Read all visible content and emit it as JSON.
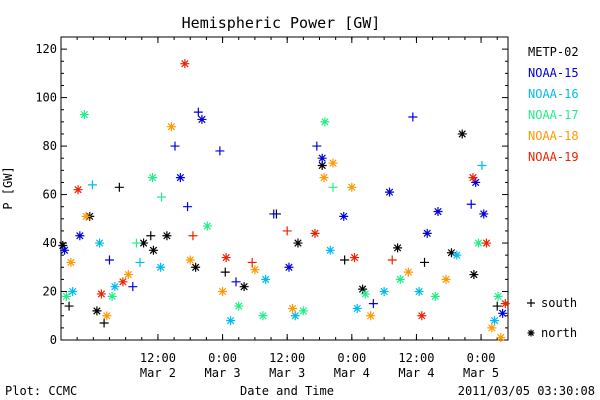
{
  "chart_data": {
    "type": "scatter",
    "title": "Hemispheric Power [GW]",
    "xlabel": "Date and Time",
    "ylabel": "P [GW]",
    "ylim": [
      0,
      125
    ],
    "yticks": [
      0,
      20,
      40,
      60,
      80,
      100,
      120
    ],
    "xlim": [
      "2011-03-01T18:00",
      "2011-03-05T05:00"
    ],
    "xticks": [
      {
        "time": "2011-03-02T12:00",
        "top": "12:00",
        "bottom": "Mar 2"
      },
      {
        "time": "2011-03-03T00:00",
        "top": "0:00",
        "bottom": "Mar 3"
      },
      {
        "time": "2011-03-03T12:00",
        "top": "12:00",
        "bottom": "Mar 3"
      },
      {
        "time": "2011-03-04T00:00",
        "top": "0:00",
        "bottom": "Mar 4"
      },
      {
        "time": "2011-03-04T12:00",
        "top": "12:00",
        "bottom": "Mar 4"
      },
      {
        "time": "2011-03-05T00:00",
        "top": "0:00",
        "bottom": "Mar 5"
      }
    ],
    "legend_position": "right",
    "marker_legend": [
      {
        "marker": "plus",
        "label": "south"
      },
      {
        "marker": "asterisk",
        "label": "north"
      }
    ],
    "series": [
      {
        "name": "METP-02",
        "color": "#000000",
        "points": [
          {
            "x": "2011-03-01T18:20",
            "y": 39,
            "m": "a"
          },
          {
            "x": "2011-03-01T19:30",
            "y": 14,
            "m": "p"
          },
          {
            "x": "2011-03-01T23:20",
            "y": 51,
            "m": "a"
          },
          {
            "x": "2011-03-02T00:40",
            "y": 12,
            "m": "a"
          },
          {
            "x": "2011-03-02T02:00",
            "y": 7,
            "m": "p"
          },
          {
            "x": "2011-03-02T04:50",
            "y": 63,
            "m": "p"
          },
          {
            "x": "2011-03-02T09:20",
            "y": 40,
            "m": "a"
          },
          {
            "x": "2011-03-02T10:40",
            "y": 43,
            "m": "p"
          },
          {
            "x": "2011-03-02T11:10",
            "y": 37,
            "m": "a"
          },
          {
            "x": "2011-03-02T13:40",
            "y": 43,
            "m": "a"
          },
          {
            "x": "2011-03-02T19:00",
            "y": 30,
            "m": "a"
          },
          {
            "x": "2011-03-03T00:30",
            "y": 28,
            "m": "p"
          },
          {
            "x": "2011-03-03T04:00",
            "y": 22,
            "m": "a"
          },
          {
            "x": "2011-03-03T10:00",
            "y": 52,
            "m": "p"
          },
          {
            "x": "2011-03-03T14:00",
            "y": 40,
            "m": "a"
          },
          {
            "x": "2011-03-03T18:30",
            "y": 72,
            "m": "a"
          },
          {
            "x": "2011-03-03T22:40",
            "y": 33,
            "m": "p"
          },
          {
            "x": "2011-03-04T02:00",
            "y": 21,
            "m": "a"
          },
          {
            "x": "2011-03-04T08:30",
            "y": 38,
            "m": "a"
          },
          {
            "x": "2011-03-04T13:30",
            "y": 32,
            "m": "p"
          },
          {
            "x": "2011-03-04T18:30",
            "y": 36,
            "m": "a"
          },
          {
            "x": "2011-03-04T20:30",
            "y": 85,
            "m": "a"
          },
          {
            "x": "2011-03-04T22:40",
            "y": 27,
            "m": "a"
          },
          {
            "x": "2011-03-05T03:00",
            "y": 14,
            "m": "p"
          }
        ]
      },
      {
        "name": "NOAA-15",
        "color": "#0000dd",
        "points": [
          {
            "x": "2011-03-01T18:40",
            "y": 37,
            "m": "a"
          },
          {
            "x": "2011-03-01T21:30",
            "y": 43,
            "m": "a"
          },
          {
            "x": "2011-03-02T03:00",
            "y": 33,
            "m": "p"
          },
          {
            "x": "2011-03-02T07:20",
            "y": 22,
            "m": "p"
          },
          {
            "x": "2011-03-02T15:10",
            "y": 80,
            "m": "p"
          },
          {
            "x": "2011-03-02T16:10",
            "y": 67,
            "m": "a"
          },
          {
            "x": "2011-03-02T17:30",
            "y": 55,
            "m": "p"
          },
          {
            "x": "2011-03-02T19:30",
            "y": 94,
            "m": "p"
          },
          {
            "x": "2011-03-02T20:10",
            "y": 91,
            "m": "a"
          },
          {
            "x": "2011-03-02T23:30",
            "y": 78,
            "m": "p"
          },
          {
            "x": "2011-03-03T02:30",
            "y": 24,
            "m": "p"
          },
          {
            "x": "2011-03-03T09:30",
            "y": 52,
            "m": "p"
          },
          {
            "x": "2011-03-03T12:20",
            "y": 30,
            "m": "a"
          },
          {
            "x": "2011-03-03T17:30",
            "y": 80,
            "m": "p"
          },
          {
            "x": "2011-03-03T18:30",
            "y": 75,
            "m": "a"
          },
          {
            "x": "2011-03-03T22:30",
            "y": 51,
            "m": "a"
          },
          {
            "x": "2011-03-04T04:00",
            "y": 15,
            "m": "p"
          },
          {
            "x": "2011-03-04T07:00",
            "y": 61,
            "m": "a"
          },
          {
            "x": "2011-03-04T11:20",
            "y": 92,
            "m": "p"
          },
          {
            "x": "2011-03-04T14:00",
            "y": 44,
            "m": "a"
          },
          {
            "x": "2011-03-04T16:00",
            "y": 53,
            "m": "a"
          },
          {
            "x": "2011-03-04T22:10",
            "y": 56,
            "m": "p"
          },
          {
            "x": "2011-03-04T23:00",
            "y": 65,
            "m": "a"
          },
          {
            "x": "2011-03-05T00:30",
            "y": 52,
            "m": "a"
          },
          {
            "x": "2011-03-05T04:00",
            "y": 11,
            "m": "a"
          }
        ]
      },
      {
        "name": "NOAA-16",
        "color": "#00bbee",
        "points": [
          {
            "x": "2011-03-01T20:10",
            "y": 20,
            "m": "a"
          },
          {
            "x": "2011-03-01T23:50",
            "y": 64,
            "m": "p"
          },
          {
            "x": "2011-03-02T01:10",
            "y": 40,
            "m": "a"
          },
          {
            "x": "2011-03-02T04:00",
            "y": 22,
            "m": "a"
          },
          {
            "x": "2011-03-02T08:40",
            "y": 32,
            "m": "p"
          },
          {
            "x": "2011-03-02T12:30",
            "y": 30,
            "m": "a"
          },
          {
            "x": "2011-03-03T01:30",
            "y": 8,
            "m": "a"
          },
          {
            "x": "2011-03-03T08:00",
            "y": 25,
            "m": "a"
          },
          {
            "x": "2011-03-03T13:30",
            "y": 10,
            "m": "a"
          },
          {
            "x": "2011-03-03T20:00",
            "y": 37,
            "m": "a"
          },
          {
            "x": "2011-03-04T01:00",
            "y": 13,
            "m": "a"
          },
          {
            "x": "2011-03-04T06:00",
            "y": 20,
            "m": "a"
          },
          {
            "x": "2011-03-04T12:30",
            "y": 20,
            "m": "a"
          },
          {
            "x": "2011-03-04T19:30",
            "y": 35,
            "m": "a"
          },
          {
            "x": "2011-03-05T00:10",
            "y": 72,
            "m": "p"
          },
          {
            "x": "2011-03-05T02:30",
            "y": 8,
            "m": "a"
          }
        ]
      },
      {
        "name": "NOAA-17",
        "color": "#22ee88",
        "points": [
          {
            "x": "2011-03-01T19:00",
            "y": 18,
            "m": "a"
          },
          {
            "x": "2011-03-01T22:20",
            "y": 93,
            "m": "a"
          },
          {
            "x": "2011-03-02T03:30",
            "y": 18,
            "m": "a"
          },
          {
            "x": "2011-03-02T08:00",
            "y": 40,
            "m": "p"
          },
          {
            "x": "2011-03-02T11:00",
            "y": 67,
            "m": "a"
          },
          {
            "x": "2011-03-02T12:40",
            "y": 59,
            "m": "p"
          },
          {
            "x": "2011-03-02T21:10",
            "y": 47,
            "m": "a"
          },
          {
            "x": "2011-03-03T03:00",
            "y": 14,
            "m": "a"
          },
          {
            "x": "2011-03-03T07:30",
            "y": 10,
            "m": "a"
          },
          {
            "x": "2011-03-03T15:00",
            "y": 12,
            "m": "a"
          },
          {
            "x": "2011-03-03T19:00",
            "y": 90,
            "m": "a"
          },
          {
            "x": "2011-03-03T20:30",
            "y": 63,
            "m": "p"
          },
          {
            "x": "2011-03-04T02:30",
            "y": 19,
            "m": "a"
          },
          {
            "x": "2011-03-04T09:00",
            "y": 25,
            "m": "a"
          },
          {
            "x": "2011-03-04T15:30",
            "y": 18,
            "m": "a"
          },
          {
            "x": "2011-03-04T23:30",
            "y": 40,
            "m": "a"
          },
          {
            "x": "2011-03-05T03:10",
            "y": 18,
            "m": "a"
          }
        ]
      },
      {
        "name": "NOAA-18",
        "color": "#ff9900",
        "points": [
          {
            "x": "2011-03-01T19:50",
            "y": 32,
            "m": "a"
          },
          {
            "x": "2011-03-01T22:40",
            "y": 51,
            "m": "a"
          },
          {
            "x": "2011-03-02T02:30",
            "y": 10,
            "m": "a"
          },
          {
            "x": "2011-03-02T06:30",
            "y": 27,
            "m": "a"
          },
          {
            "x": "2011-03-02T14:30",
            "y": 88,
            "m": "a"
          },
          {
            "x": "2011-03-02T18:00",
            "y": 33,
            "m": "a"
          },
          {
            "x": "2011-03-03T00:00",
            "y": 20,
            "m": "a"
          },
          {
            "x": "2011-03-03T06:00",
            "y": 29,
            "m": "a"
          },
          {
            "x": "2011-03-03T13:00",
            "y": 13,
            "m": "a"
          },
          {
            "x": "2011-03-03T18:50",
            "y": 67,
            "m": "a"
          },
          {
            "x": "2011-03-03T20:30",
            "y": 73,
            "m": "a"
          },
          {
            "x": "2011-03-04T00:00",
            "y": 63,
            "m": "a"
          },
          {
            "x": "2011-03-04T03:30",
            "y": 10,
            "m": "a"
          },
          {
            "x": "2011-03-04T10:30",
            "y": 28,
            "m": "a"
          },
          {
            "x": "2011-03-04T17:30",
            "y": 25,
            "m": "a"
          },
          {
            "x": "2011-03-05T02:00",
            "y": 5,
            "m": "a"
          },
          {
            "x": "2011-03-05T03:40",
            "y": 1,
            "m": "a"
          }
        ]
      },
      {
        "name": "NOAA-19",
        "color": "#ee2200",
        "points": [
          {
            "x": "2011-03-01T21:10",
            "y": 62,
            "m": "a"
          },
          {
            "x": "2011-03-02T01:30",
            "y": 19,
            "m": "a"
          },
          {
            "x": "2011-03-02T05:30",
            "y": 24,
            "m": "a"
          },
          {
            "x": "2011-03-02T17:00",
            "y": 114,
            "m": "a"
          },
          {
            "x": "2011-03-02T18:30",
            "y": 43,
            "m": "p"
          },
          {
            "x": "2011-03-03T00:40",
            "y": 34,
            "m": "a"
          },
          {
            "x": "2011-03-03T05:30",
            "y": 32,
            "m": "p"
          },
          {
            "x": "2011-03-03T12:00",
            "y": 45,
            "m": "p"
          },
          {
            "x": "2011-03-03T17:10",
            "y": 44,
            "m": "a"
          },
          {
            "x": "2011-03-04T00:30",
            "y": 34,
            "m": "a"
          },
          {
            "x": "2011-03-04T07:30",
            "y": 33,
            "m": "p"
          },
          {
            "x": "2011-03-04T13:00",
            "y": 10,
            "m": "a"
          },
          {
            "x": "2011-03-04T22:30",
            "y": 67,
            "m": "a"
          },
          {
            "x": "2011-03-05T01:00",
            "y": 40,
            "m": "a"
          },
          {
            "x": "2011-03-05T04:30",
            "y": 15,
            "m": "a"
          }
        ]
      }
    ]
  },
  "footer": {
    "plot_credit": "Plot: CCMC",
    "timestamp": "2011/03/05 03:30:08"
  }
}
